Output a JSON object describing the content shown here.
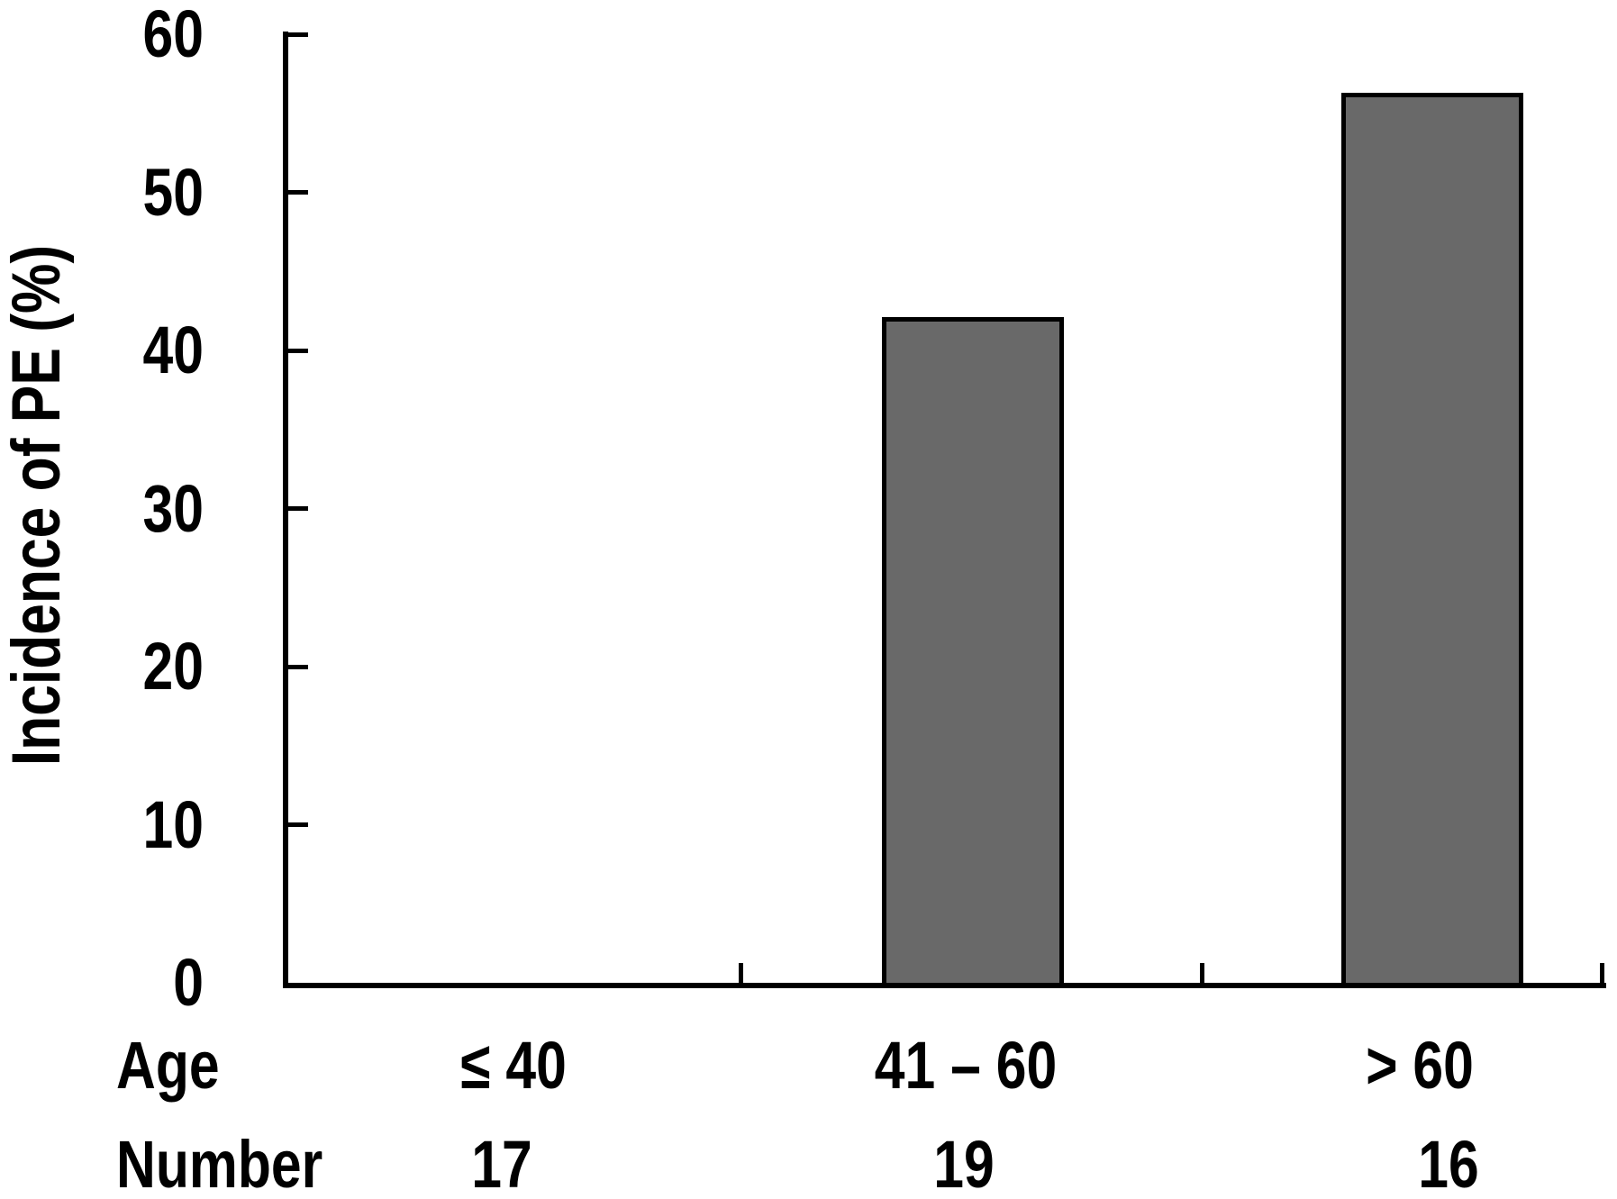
{
  "chart_data": {
    "type": "bar",
    "title": "",
    "ylabel": "Incidence of PE (%)",
    "xlabel": "",
    "ylim": [
      0,
      60
    ],
    "yticks": [
      0,
      10,
      20,
      30,
      40,
      50,
      60
    ],
    "grid": false,
    "legend": false,
    "categories": [
      "≤ 40",
      "41 – 60",
      "> 60"
    ],
    "values": [
      0,
      42.1,
      56.3
    ],
    "row_labels": {
      "age": "Age",
      "number": "Number"
    },
    "numbers": [
      "17",
      "19",
      "16"
    ],
    "colors": {
      "bar_fill": "#696969",
      "bar_border": "#000000",
      "axis": "#000000",
      "text": "#000000",
      "background": "#ffffff"
    }
  }
}
